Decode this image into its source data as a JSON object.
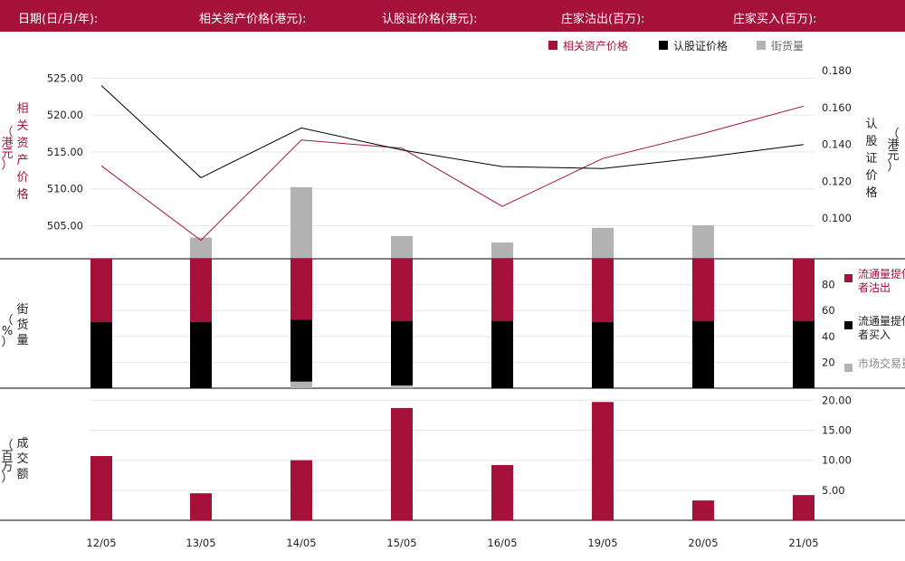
{
  "header": {
    "date_label": "日期(日/月/年):",
    "underlying_label": "相关资产价格(港元):",
    "warrant_label": "认股证价格(港元):",
    "mm_out_label": "庄家沽出(百万):",
    "mm_in_label": "庄家买入(百万):"
  },
  "colors": {
    "crimson": "#a6113a",
    "black": "#000000",
    "gray": "#b3b3b3"
  },
  "chart_data": [
    {
      "type": "line",
      "panel": "price",
      "categories": [
        "12/05",
        "13/05",
        "14/05",
        "15/05",
        "16/05",
        "19/05",
        "20/05",
        "21/05"
      ],
      "legend": [
        "相关资产价格",
        "认股证价格",
        "街货量"
      ],
      "left_axis": {
        "label": "相关资产价格",
        "unit": "（港元）",
        "ylim": [
          500.5,
          527.5
        ],
        "ticks": [
          "525.00",
          "520.00",
          "515.00",
          "510.00",
          "505.00"
        ]
      },
      "right_axis": {
        "label": "认股证价格",
        "unit": "（港元）",
        "ylim": [
          0.078,
          0.186
        ],
        "ticks": [
          "0.180",
          "0.160",
          "0.140",
          "0.120",
          "0.100"
        ]
      },
      "series": [
        {
          "name": "相关资产价格",
          "axis": "left",
          "values": [
            513.1,
            503.0,
            516.6,
            515.5,
            507.6,
            514.1,
            517.5,
            521.2
          ]
        },
        {
          "name": "认股证价格",
          "axis": "right",
          "values": [
            0.172,
            0.122,
            0.149,
            0.137,
            0.128,
            0.127,
            0.133,
            0.14
          ]
        }
      ],
      "street_volume": {
        "name": "街货量",
        "values": [
          0.0,
          2.6,
          8.8,
          2.8,
          2.0,
          3.8,
          4.1,
          0.0
        ]
      }
    },
    {
      "type": "bar",
      "panel": "street_pct",
      "axis_label": "街货量",
      "unit": "（%）",
      "ylim": [
        0,
        100
      ],
      "ticks": [
        "80",
        "60",
        "40",
        "20"
      ],
      "legend": [
        "流通量提供者沽出",
        "流通量提供者买入",
        "市场交易量"
      ],
      "series": [
        {
          "name": "流通量提供者沽出",
          "values": [
            49,
            49,
            47,
            48,
            48,
            49,
            48,
            48
          ]
        },
        {
          "name": "流通量提供者买入",
          "values": [
            51,
            51,
            48,
            50,
            52,
            51,
            52,
            52
          ]
        },
        {
          "name": "市场交易量",
          "values": [
            0,
            0,
            5,
            2,
            0,
            0,
            0,
            0
          ]
        }
      ]
    },
    {
      "type": "bar",
      "panel": "turnover",
      "axis_label": "成交额",
      "unit": "（百万）",
      "ylim": [
        0,
        22
      ],
      "ticks": [
        "20.00",
        "15.00",
        "10.00",
        "5.00"
      ],
      "series": [
        {
          "name": "成交额",
          "values": [
            10.7,
            4.5,
            10.0,
            18.7,
            9.2,
            19.7,
            3.3,
            4.2
          ]
        }
      ]
    }
  ]
}
